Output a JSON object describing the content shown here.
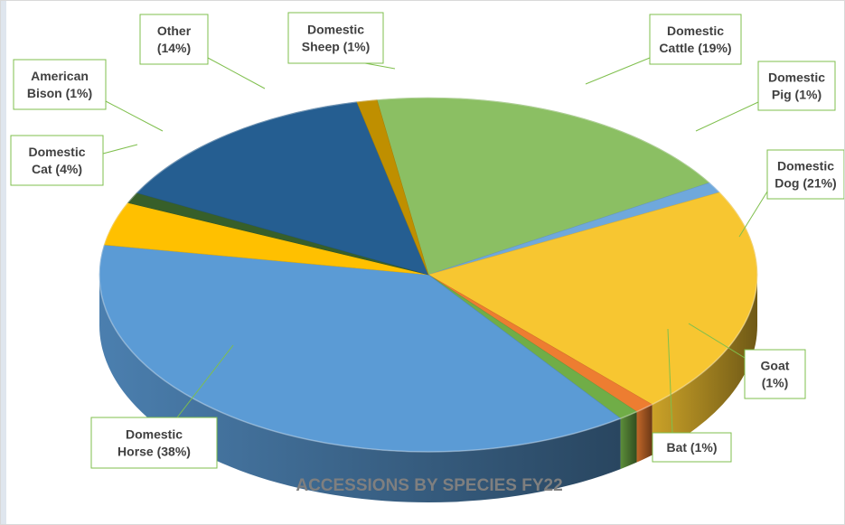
{
  "chart_data": {
    "type": "pie",
    "title": "ACCESSIONS BY SPECIES FY22",
    "slices": [
      {
        "key": "cattle",
        "label": [
          "Domestic",
          "Cattle (19%)"
        ],
        "value": 19,
        "color": "#8bbf63"
      },
      {
        "key": "pig",
        "label": [
          "Domestic",
          "Pig (1%)"
        ],
        "value": 1,
        "color": "#6fa8dc"
      },
      {
        "key": "dog",
        "label": [
          "Domestic",
          "Dog (21%)"
        ],
        "value": 21,
        "color": "#f7c631"
      },
      {
        "key": "goat",
        "label": [
          "Goat",
          "(1%)"
        ],
        "value": 1,
        "color": "#ed7d31"
      },
      {
        "key": "bat",
        "label": [
          "Bat (1%)"
        ],
        "value": 1,
        "color": "#70ad47"
      },
      {
        "key": "horse",
        "label": [
          "Domestic",
          "Horse (38%)"
        ],
        "value": 38,
        "color": "#5b9bd5"
      },
      {
        "key": "cat",
        "label": [
          "Domestic",
          "Cat (4%)"
        ],
        "value": 4,
        "color": "#ffc000"
      },
      {
        "key": "bison",
        "label": [
          "American",
          "Bison (1%)"
        ],
        "value": 1,
        "color": "#375f2a"
      },
      {
        "key": "other",
        "label": [
          "Other",
          "(14%)"
        ],
        "value": 14,
        "color": "#255e91"
      },
      {
        "key": "sheep",
        "label": [
          "Domestic",
          "Sheep (1%)"
        ],
        "value": 1,
        "color": "#bf8f00"
      }
    ],
    "label_border_color": "#7fbf4d",
    "title_color": "#7f7f7f"
  }
}
